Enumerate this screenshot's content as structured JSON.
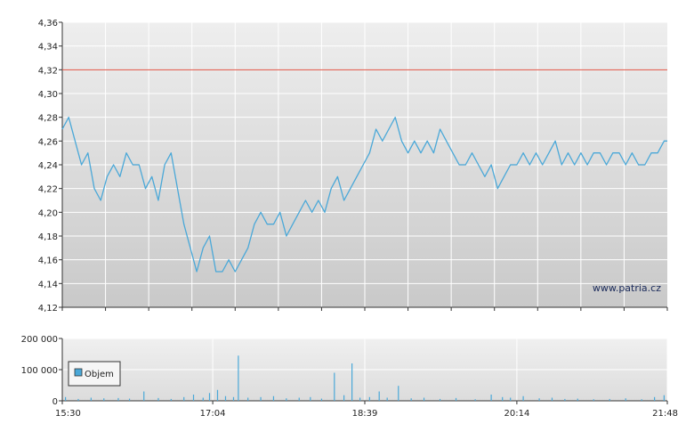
{
  "watermark": "www.patria.cz",
  "legend": {
    "label": "Objem"
  },
  "chart_data": [
    {
      "type": "line",
      "title": "",
      "y_ticks": [
        "4,12",
        "4,14",
        "4,16",
        "4,18",
        "4,20",
        "4,22",
        "4,24",
        "4,26",
        "4,28",
        "4,30",
        "4,32",
        "4,34",
        "4,36"
      ],
      "ylim": [
        4.12,
        4.36
      ],
      "x_ticks": [
        "15:30",
        "17:04",
        "18:39",
        "20:14",
        "21:48"
      ],
      "reference_line": {
        "value": 4.32,
        "color": "#e05040"
      },
      "line_color": "#4aa8d8",
      "series": [
        {
          "points": [
            [
              "15:30",
              4.27
            ],
            [
              "15:34",
              4.28
            ],
            [
              "15:38",
              4.26
            ],
            [
              "15:42",
              4.24
            ],
            [
              "15:46",
              4.25
            ],
            [
              "15:50",
              4.22
            ],
            [
              "15:54",
              4.21
            ],
            [
              "15:58",
              4.23
            ],
            [
              "16:02",
              4.24
            ],
            [
              "16:06",
              4.23
            ],
            [
              "16:10",
              4.25
            ],
            [
              "16:14",
              4.24
            ],
            [
              "16:18",
              4.24
            ],
            [
              "16:22",
              4.22
            ],
            [
              "16:26",
              4.23
            ],
            [
              "16:30",
              4.21
            ],
            [
              "16:34",
              4.24
            ],
            [
              "16:38",
              4.25
            ],
            [
              "16:42",
              4.22
            ],
            [
              "16:46",
              4.19
            ],
            [
              "16:50",
              4.17
            ],
            [
              "16:54",
              4.15
            ],
            [
              "16:58",
              4.17
            ],
            [
              "17:02",
              4.18
            ],
            [
              "17:06",
              4.15
            ],
            [
              "17:10",
              4.15
            ],
            [
              "17:14",
              4.16
            ],
            [
              "17:18",
              4.15
            ],
            [
              "17:22",
              4.16
            ],
            [
              "17:26",
              4.17
            ],
            [
              "17:30",
              4.19
            ],
            [
              "17:34",
              4.2
            ],
            [
              "17:38",
              4.19
            ],
            [
              "17:42",
              4.19
            ],
            [
              "17:46",
              4.2
            ],
            [
              "17:50",
              4.18
            ],
            [
              "17:54",
              4.19
            ],
            [
              "17:58",
              4.2
            ],
            [
              "18:02",
              4.21
            ],
            [
              "18:06",
              4.2
            ],
            [
              "18:10",
              4.21
            ],
            [
              "18:14",
              4.2
            ],
            [
              "18:18",
              4.22
            ],
            [
              "18:22",
              4.23
            ],
            [
              "18:26",
              4.21
            ],
            [
              "18:30",
              4.22
            ],
            [
              "18:34",
              4.23
            ],
            [
              "18:38",
              4.24
            ],
            [
              "18:42",
              4.25
            ],
            [
              "18:46",
              4.27
            ],
            [
              "18:50",
              4.26
            ],
            [
              "18:54",
              4.27
            ],
            [
              "18:58",
              4.28
            ],
            [
              "19:02",
              4.26
            ],
            [
              "19:06",
              4.25
            ],
            [
              "19:10",
              4.26
            ],
            [
              "19:14",
              4.25
            ],
            [
              "19:18",
              4.26
            ],
            [
              "19:22",
              4.25
            ],
            [
              "19:26",
              4.27
            ],
            [
              "19:30",
              4.26
            ],
            [
              "19:34",
              4.25
            ],
            [
              "19:38",
              4.24
            ],
            [
              "19:42",
              4.24
            ],
            [
              "19:46",
              4.25
            ],
            [
              "19:50",
              4.24
            ],
            [
              "19:54",
              4.23
            ],
            [
              "19:58",
              4.24
            ],
            [
              "20:02",
              4.22
            ],
            [
              "20:06",
              4.23
            ],
            [
              "20:10",
              4.24
            ],
            [
              "20:14",
              4.24
            ],
            [
              "20:18",
              4.25
            ],
            [
              "20:22",
              4.24
            ],
            [
              "20:26",
              4.25
            ],
            [
              "20:30",
              4.24
            ],
            [
              "20:34",
              4.25
            ],
            [
              "20:38",
              4.26
            ],
            [
              "20:42",
              4.24
            ],
            [
              "20:46",
              4.25
            ],
            [
              "20:50",
              4.24
            ],
            [
              "20:54",
              4.25
            ],
            [
              "20:58",
              4.24
            ],
            [
              "21:02",
              4.25
            ],
            [
              "21:06",
              4.25
            ],
            [
              "21:10",
              4.24
            ],
            [
              "21:14",
              4.25
            ],
            [
              "21:18",
              4.25
            ],
            [
              "21:22",
              4.24
            ],
            [
              "21:26",
              4.25
            ],
            [
              "21:30",
              4.24
            ],
            [
              "21:34",
              4.24
            ],
            [
              "21:38",
              4.25
            ],
            [
              "21:42",
              4.25
            ],
            [
              "21:46",
              4.26
            ],
            [
              "21:48",
              4.26
            ]
          ]
        }
      ]
    },
    {
      "type": "bar",
      "title": "",
      "y_ticks": [
        "0",
        "100 000",
        "200 000"
      ],
      "ylim": [
        0,
        200000
      ],
      "x_ticks": [
        "15:30",
        "17:04",
        "18:39",
        "20:14",
        "21:48"
      ],
      "series": [
        {
          "name": "Objem",
          "color": "#4aa8d8",
          "points": [
            [
              "15:32",
              12000
            ],
            [
              "15:40",
              6000
            ],
            [
              "15:48",
              10000
            ],
            [
              "15:56",
              8000
            ],
            [
              "16:05",
              9000
            ],
            [
              "16:12",
              7000
            ],
            [
              "16:21",
              30000
            ],
            [
              "16:30",
              9000
            ],
            [
              "16:38",
              6000
            ],
            [
              "16:46",
              12000
            ],
            [
              "16:52",
              20000
            ],
            [
              "16:58",
              10000
            ],
            [
              "17:02",
              25000
            ],
            [
              "17:07",
              35000
            ],
            [
              "17:12",
              15000
            ],
            [
              "17:17",
              12000
            ],
            [
              "17:20",
              145000
            ],
            [
              "17:26",
              10000
            ],
            [
              "17:34",
              12000
            ],
            [
              "17:42",
              15000
            ],
            [
              "17:50",
              8000
            ],
            [
              "17:58",
              10000
            ],
            [
              "18:05",
              12000
            ],
            [
              "18:12",
              7000
            ],
            [
              "18:20",
              90000
            ],
            [
              "18:26",
              18000
            ],
            [
              "18:31",
              120000
            ],
            [
              "18:36",
              10000
            ],
            [
              "18:42",
              12000
            ],
            [
              "18:48",
              30000
            ],
            [
              "18:53",
              10000
            ],
            [
              "19:00",
              48000
            ],
            [
              "19:08",
              8000
            ],
            [
              "19:16",
              10000
            ],
            [
              "19:26",
              6000
            ],
            [
              "19:36",
              9000
            ],
            [
              "19:48",
              5000
            ],
            [
              "19:58",
              20000
            ],
            [
              "20:05",
              12000
            ],
            [
              "20:10",
              10000
            ],
            [
              "20:18",
              15000
            ],
            [
              "20:28",
              8000
            ],
            [
              "20:36",
              10000
            ],
            [
              "20:44",
              6000
            ],
            [
              "20:52",
              7000
            ],
            [
              "21:02",
              5000
            ],
            [
              "21:12",
              6000
            ],
            [
              "21:22",
              8000
            ],
            [
              "21:32",
              5000
            ],
            [
              "21:40",
              12000
            ],
            [
              "21:46",
              18000
            ]
          ]
        }
      ]
    }
  ]
}
